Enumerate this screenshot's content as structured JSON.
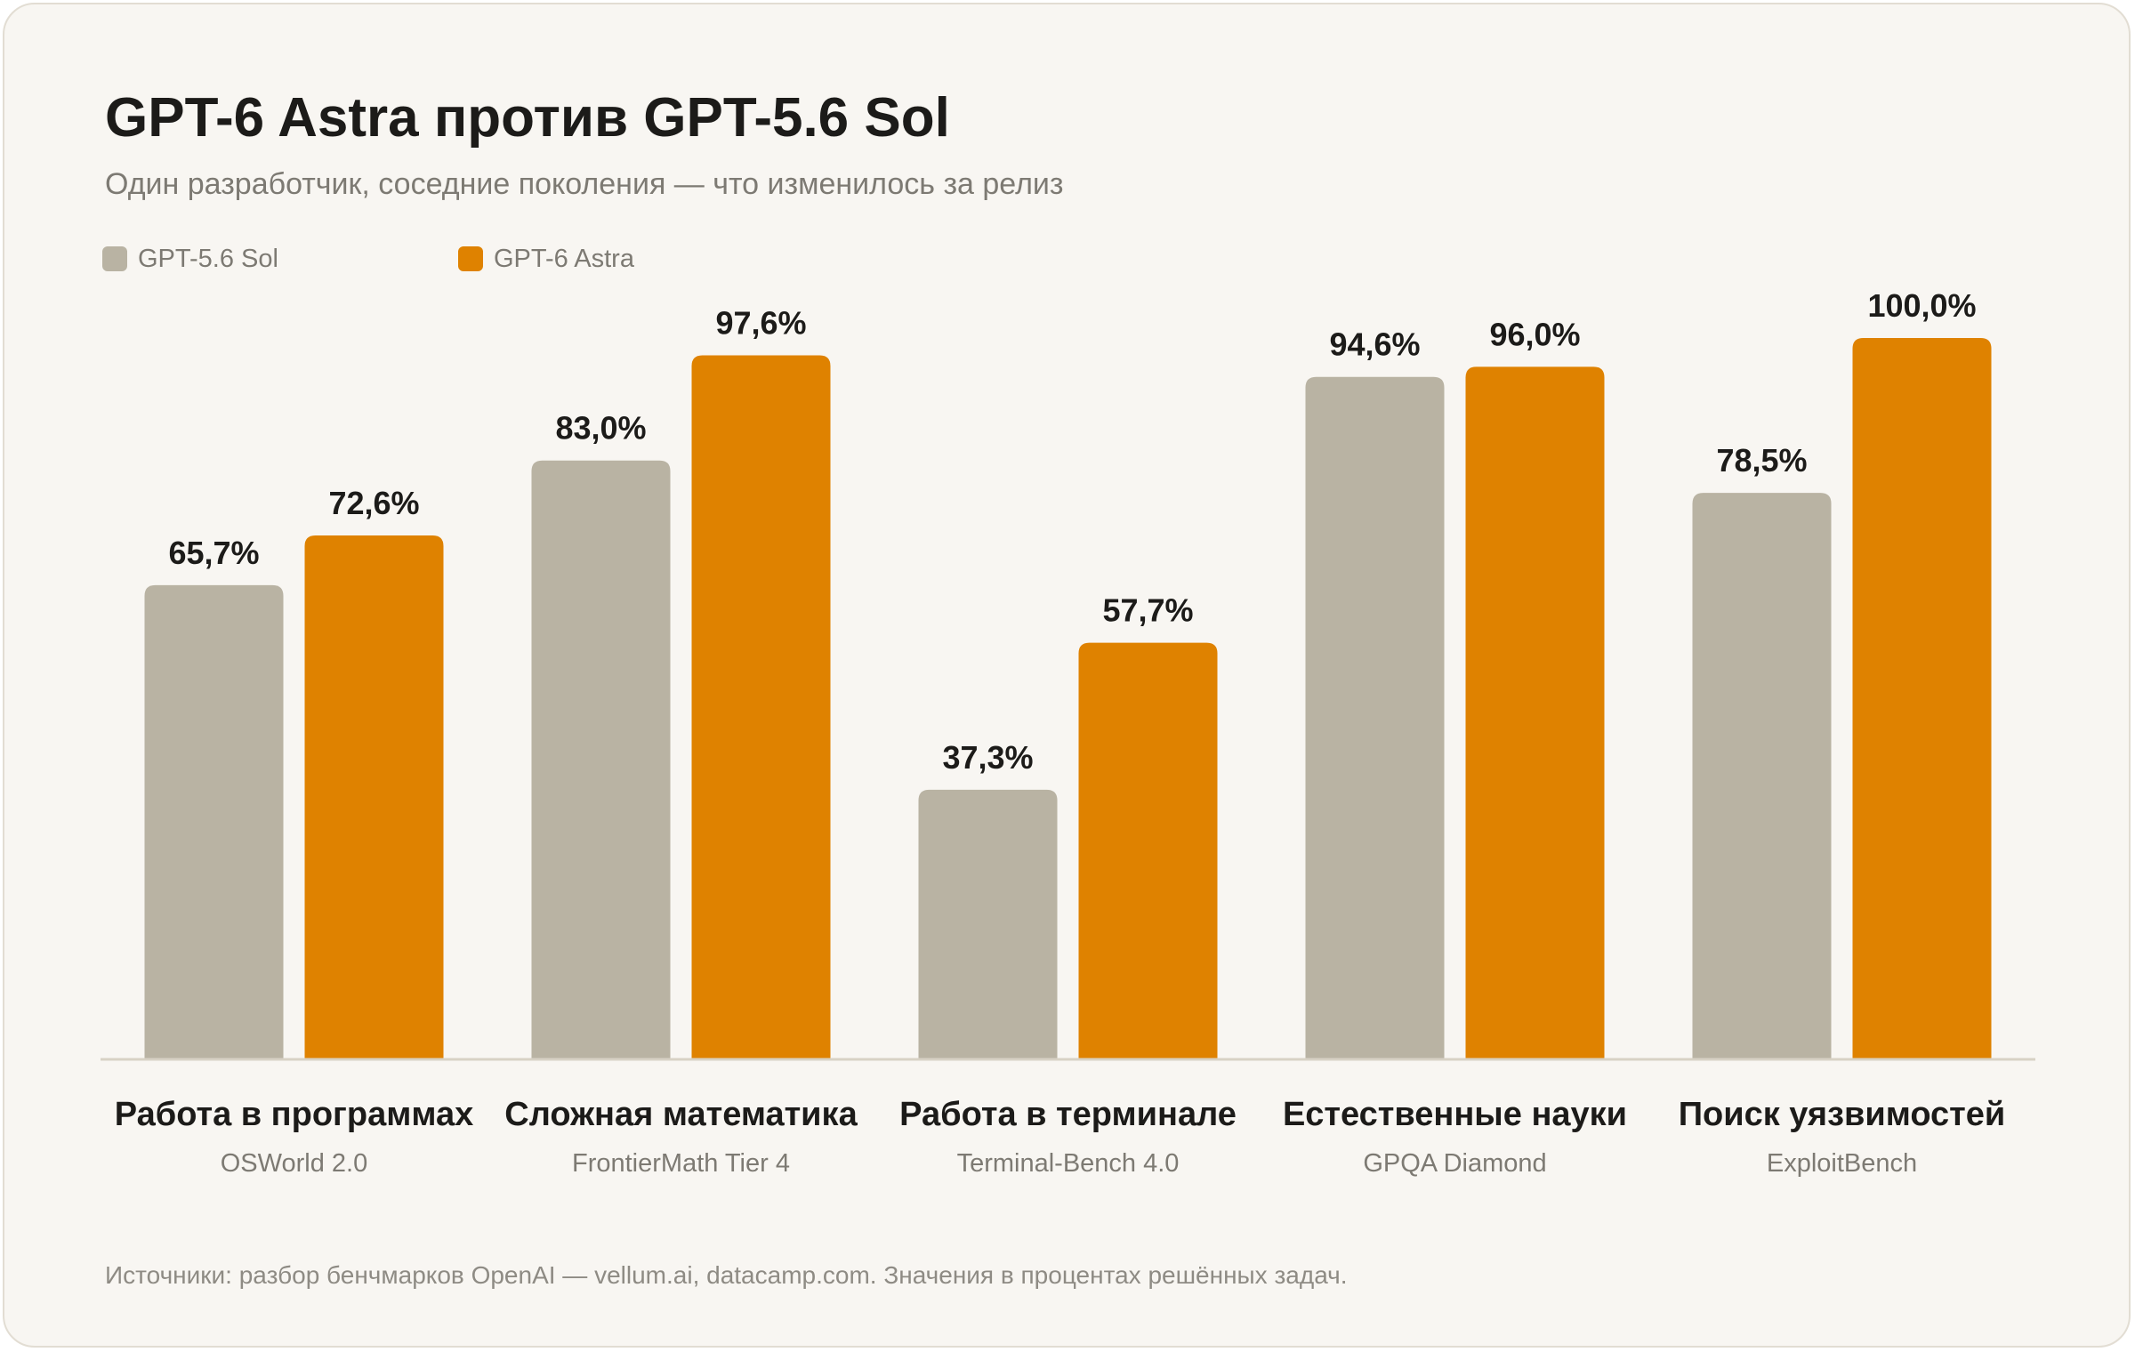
{
  "chart_data": {
    "type": "bar",
    "title": "GPT-6 Astra против GPT-5.6 Sol",
    "subtitle": "Один разработчик, соседние поколения — что изменилось за релиз",
    "categories": [
      "Работа в программах",
      "Сложная математика",
      "Работа в терминале",
      "Естественные науки",
      "Поиск уязвимостей"
    ],
    "category_subtitles": [
      "OSWorld 2.0",
      "FrontierMath Tier 4",
      "Terminal-Bench 4.0",
      "GPQA Diamond",
      "ExploitBench"
    ],
    "series": [
      {
        "name": "GPT-5.6 Sol",
        "color": "#b9b3a3",
        "values": [
          65.7,
          83.0,
          37.3,
          94.6,
          78.5
        ],
        "labels": [
          "65,7%",
          "83,0%",
          "37,3%",
          "94,6%",
          "78,5%"
        ]
      },
      {
        "name": "GPT-6 Astra",
        "color": "#df8200",
        "values": [
          72.6,
          97.6,
          57.7,
          96.0,
          100.0
        ],
        "labels": [
          "72,6%",
          "97,6%",
          "57,7%",
          "96,0%",
          "100,0%"
        ]
      }
    ],
    "ylim": [
      0,
      100
    ],
    "grid": false,
    "legend_position": "top-left",
    "xlabel": "",
    "ylabel": "",
    "footnote": "Источники: разбор бенчмарков OpenAI — vellum.ai, datacamp.com. Значения в процентах решённых задач."
  }
}
